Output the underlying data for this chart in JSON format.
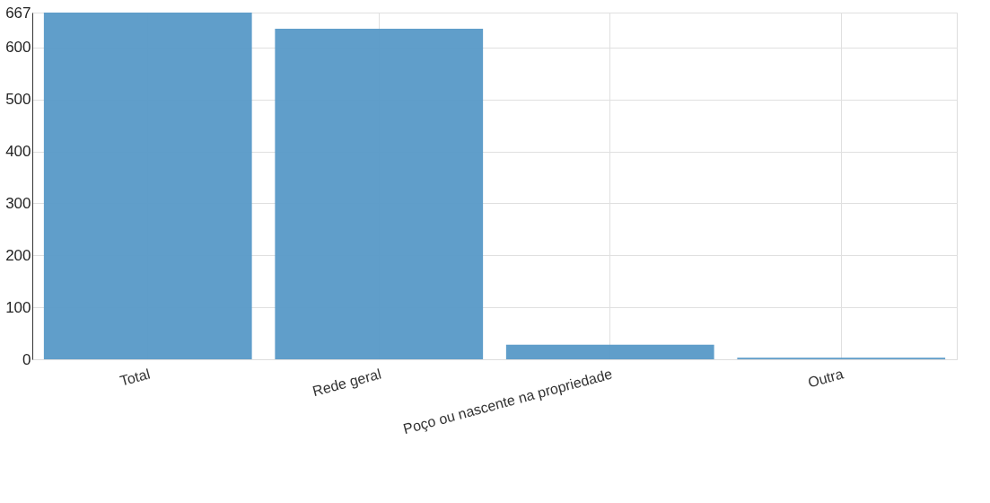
{
  "chart_data": {
    "type": "bar",
    "categories": [
      "Total",
      "Rede geral",
      "Poço ou nascente na propriedade",
      "Outra"
    ],
    "values": [
      667,
      636,
      28,
      3
    ],
    "color": "#5799c7",
    "ylim": [
      0,
      667
    ],
    "yticks": [
      0,
      100,
      200,
      300,
      400,
      500,
      600,
      667
    ],
    "grid": true
  }
}
